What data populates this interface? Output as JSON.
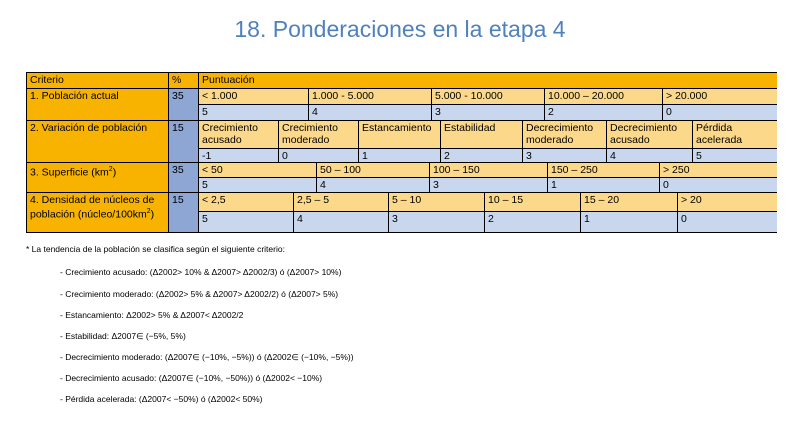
{
  "title": "18. Ponderaciones en la etapa 4",
  "table": {
    "headers": {
      "criterio": "Criterio",
      "pct": "%",
      "puntuacion": "Puntuación"
    },
    "rows": [
      {
        "criterio": "1. Población actual",
        "pct": "35",
        "bands": [
          "< 1.000",
          "1.000 - 5.000",
          "5.000 - 10.000",
          "10.000 – 20.000",
          "> 20.000"
        ],
        "scores": [
          "5",
          "4",
          "3",
          "2",
          "0"
        ]
      },
      {
        "criterio": "2. Variación de población",
        "pct": "15",
        "bands": [
          "Crecimiento acusado",
          "Crecimiento moderado",
          "Estancamiento",
          "Estabilidad",
          "Decrecimiento moderado",
          "Decrecimiento acusado",
          "Pérdida acelerada"
        ],
        "scores": [
          "-1",
          "0",
          "1",
          "2",
          "3",
          "4",
          "5"
        ]
      },
      {
        "criterio": "3. Superficie (km²)",
        "pct": "35",
        "bands": [
          "< 50",
          "50 – 100",
          "100 – 150",
          "150 – 250",
          "> 250"
        ],
        "scores": [
          "5",
          "4",
          "3",
          "1",
          "0"
        ]
      },
      {
        "criterio": "4. Densidad de núcleos de población (núcleo/100km²)",
        "pct": "15",
        "bands": [
          "< 2,5",
          "2,5 – 5",
          "5 – 10",
          "10 – 15",
          "15 – 20",
          "> 20"
        ],
        "scores": [
          "5",
          "4",
          "3",
          "2",
          "1",
          "0"
        ]
      }
    ]
  },
  "notes": {
    "heading": "* La tendencia de la población se clasifica según el siguiente criterio:",
    "items": [
      "- Crecimiento acusado: (Δ2002> 10% & Δ2007> Δ2002/3) ó (Δ2007> 10%)",
      "- Crecimiento moderado: (Δ2002> 5% & Δ2007> Δ2002/2) ó (Δ2007> 5%)",
      "- Estancamiento: Δ2002> 5% & Δ2007< Δ2002/2",
      "- Estabilidad: Δ2007∈ (−5%, 5%)",
      "- Decrecimiento moderado: (Δ2007∈ (−10%, −5%)) ó (Δ2002∈ (−10%, −5%))",
      "- Decrecimiento acusado: (Δ2007∈ (−10%, −50%)) ó (Δ2002< −10%)",
      "- Pérdida acelerada: (Δ2007< −50%) ó (Δ2002< 50%)"
    ]
  }
}
